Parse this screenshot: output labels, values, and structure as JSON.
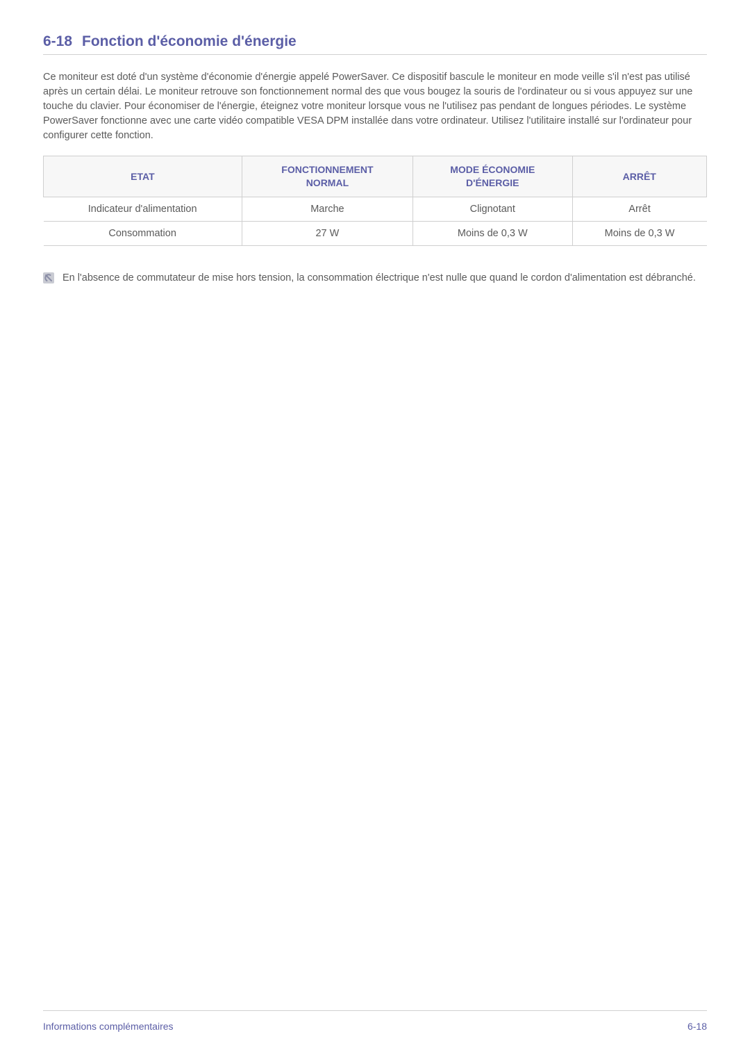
{
  "colors": {
    "accent": "#5b5ea6",
    "text": "#5a5a5a",
    "border": "#cfcfcf",
    "header_bg": "#f7f7f7",
    "rule": "#d0d0d0",
    "note_icon_bg": "#c9cbd3",
    "note_icon_glyph": "#8a8da6"
  },
  "section": {
    "number": "6-18",
    "title": "Fonction d'économie d'énergie"
  },
  "paragraph": "Ce moniteur est doté d'un système d'économie d'énergie appelé PowerSaver. Ce dispositif bascule le moniteur en mode veille s'il n'est pas utilisé après un certain délai. Le moniteur retrouve son fonctionnement normal des que vous bougez la souris de l'ordinateur ou si vous appuyez sur une touche du clavier. Pour économiser de l'énergie, éteignez votre moniteur lorsque vous ne l'utilisez pas pendant de longues périodes. Le système PowerSaver fonctionne avec une carte vidéo compatible VESA DPM installée dans votre ordinateur. Utilisez l'utilitaire installé sur l'ordinateur pour configurer cette fonction.",
  "table": {
    "columns": [
      "ETAT",
      "FONCTIONNEMENT NORMAL",
      "MODE ÉCONOMIE D'ÉNERGIE",
      "ARRÊT"
    ],
    "column_widths": [
      "25%",
      "25%",
      "25%",
      "25%"
    ],
    "rows": [
      [
        "Indicateur d'alimentation",
        "Marche",
        "Clignotant",
        "Arrêt"
      ],
      [
        "Consommation",
        "27 W",
        "Moins de 0,3 W",
        "Moins de 0,3 W"
      ]
    ]
  },
  "note": {
    "icon_name": "info-icon",
    "text": "En l'absence de commutateur de mise hors tension, la consommation électrique n'est nulle que quand le cordon d'alimentation est débranché."
  },
  "footer": {
    "left": "Informations complémentaires",
    "right": "6-18"
  }
}
